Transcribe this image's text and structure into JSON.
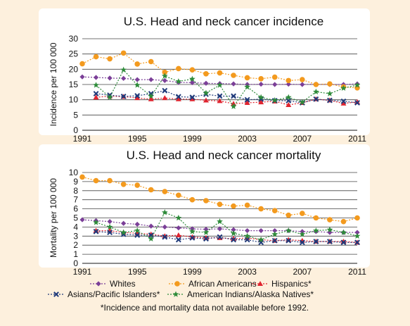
{
  "chart_data": [
    {
      "type": "line",
      "title": "U.S. Head and neck cancer incidence",
      "xlabel": "",
      "ylabel": "Incidence per 100 000",
      "ylim": [
        0,
        30
      ],
      "yticks": [
        0,
        5,
        10,
        15,
        20,
        25,
        30
      ],
      "xlim": [
        1991,
        2011
      ],
      "xticks": [
        "1991",
        "1995",
        "1999",
        "2003",
        "2007",
        "2011"
      ],
      "grid": "horizontal",
      "series": [
        {
          "name": "Whites",
          "color": "#7b3f98",
          "marker": "diamond",
          "x": [
            1991,
            1992,
            1993,
            1994,
            1995,
            1996,
            1997,
            1998,
            1999,
            2000,
            2001,
            2002,
            2003,
            2004,
            2005,
            2006,
            2007,
            2008,
            2009,
            2010,
            2011
          ],
          "y": [
            17.5,
            17.3,
            17.1,
            17.0,
            16.6,
            16.6,
            16.3,
            15.7,
            15.6,
            15.4,
            15.3,
            15.2,
            15.0,
            15.1,
            15.0,
            15.1,
            15.0,
            15.1,
            15.0,
            15.0,
            15.2
          ]
        },
        {
          "name": "African Americans",
          "color": "#f39a1e",
          "marker": "circle",
          "x": [
            1991,
            1992,
            1993,
            1994,
            1995,
            1996,
            1997,
            1998,
            1999,
            2000,
            2001,
            2002,
            2003,
            2004,
            2005,
            2006,
            2007,
            2008,
            2009,
            2010,
            2011
          ],
          "y": [
            21.8,
            24.1,
            23.4,
            25.3,
            21.7,
            22.5,
            19.0,
            20.2,
            19.8,
            18.5,
            18.8,
            18.0,
            17.2,
            16.9,
            17.4,
            16.3,
            16.6,
            15.0,
            15.2,
            14.2,
            13.9
          ]
        },
        {
          "name": "Hispanics*",
          "color": "#e0242f",
          "marker": "triangle",
          "x": [
            1992,
            1993,
            1994,
            1995,
            1996,
            1997,
            1998,
            1999,
            2000,
            2001,
            2002,
            2003,
            2004,
            2005,
            2006,
            2007,
            2008,
            2009,
            2010,
            2011
          ],
          "y": [
            10.8,
            11.2,
            11.0,
            10.6,
            10.2,
            10.6,
            10.2,
            10.2,
            9.8,
            9.6,
            8.7,
            9.0,
            9.2,
            9.5,
            8.3,
            9.0,
            10.2,
            9.8,
            8.8,
            9.3
          ]
        },
        {
          "name": "Asians/Pacific Islanders*",
          "color": "#1f3a7a",
          "marker": "x",
          "x": [
            1992,
            1993,
            1994,
            1995,
            1996,
            1997,
            1998,
            1999,
            2000,
            2001,
            2002,
            2003,
            2004,
            2005,
            2006,
            2007,
            2008,
            2009,
            2010,
            2011
          ],
          "y": [
            12.0,
            11.5,
            11.1,
            11.3,
            12.0,
            13.0,
            11.0,
            10.8,
            11.8,
            11.2,
            11.2,
            10.0,
            10.2,
            9.7,
            9.7,
            9.0,
            10.2,
            9.8,
            9.5,
            9.0
          ]
        },
        {
          "name": "American Indians/Alaska Natives*",
          "color": "#2e8b3a",
          "marker": "star",
          "x": [
            1992,
            1993,
            1994,
            1995,
            1996,
            1997,
            1998,
            1999,
            2000,
            2001,
            2002,
            2003,
            2004,
            2005,
            2006,
            2007,
            2008,
            2009,
            2010,
            2011
          ],
          "y": [
            14.8,
            10.8,
            19.8,
            14.8,
            11.2,
            17.8,
            16.0,
            16.8,
            12.2,
            14.8,
            7.8,
            14.2,
            10.8,
            9.8,
            10.8,
            9.2,
            12.6,
            12.0,
            13.8,
            14.8
          ]
        }
      ]
    },
    {
      "type": "line",
      "title": "U.S. Head and neck cancer mortality",
      "xlabel": "",
      "ylabel": "Mortality per 100 000",
      "ylim": [
        0,
        10
      ],
      "yticks": [
        0,
        1,
        2,
        3,
        4,
        5,
        6,
        7,
        8,
        9,
        10
      ],
      "xlim": [
        1991,
        2011
      ],
      "xticks": [
        "1991",
        "1995",
        "1999",
        "2003",
        "2007",
        "2011"
      ],
      "grid": "horizontal",
      "series": [
        {
          "name": "Whites",
          "color": "#7b3f98",
          "marker": "diamond",
          "x": [
            1991,
            1992,
            1993,
            1994,
            1995,
            1996,
            1997,
            1998,
            1999,
            2000,
            2001,
            2002,
            2003,
            2004,
            2005,
            2006,
            2007,
            2008,
            2009,
            2010,
            2011
          ],
          "y": [
            4.8,
            4.7,
            4.6,
            4.4,
            4.3,
            4.1,
            4.0,
            3.9,
            3.8,
            3.75,
            3.8,
            3.7,
            3.6,
            3.6,
            3.6,
            3.6,
            3.5,
            3.5,
            3.4,
            3.4,
            3.4
          ]
        },
        {
          "name": "African Americans",
          "color": "#f39a1e",
          "marker": "circle",
          "x": [
            1991,
            1992,
            1993,
            1994,
            1995,
            1996,
            1997,
            1998,
            1999,
            2000,
            2001,
            2002,
            2003,
            2004,
            2005,
            2006,
            2007,
            2008,
            2009,
            2010,
            2011
          ],
          "y": [
            9.5,
            9.1,
            9.1,
            8.7,
            8.6,
            8.1,
            7.9,
            7.5,
            7.0,
            6.9,
            6.5,
            6.3,
            6.4,
            6.0,
            5.8,
            5.3,
            5.5,
            5.0,
            4.8,
            4.6,
            5.0
          ]
        },
        {
          "name": "Hispanics*",
          "color": "#e0242f",
          "marker": "triangle",
          "x": [
            1992,
            1993,
            1994,
            1995,
            1996,
            1997,
            1998,
            1999,
            2000,
            2001,
            2002,
            2003,
            2004,
            2005,
            2006,
            2007,
            2008,
            2009,
            2010,
            2011
          ],
          "y": [
            3.6,
            3.6,
            3.4,
            3.3,
            3.2,
            3.0,
            3.1,
            2.9,
            2.8,
            2.8,
            2.7,
            2.8,
            2.6,
            2.5,
            2.6,
            2.5,
            2.4,
            2.4,
            2.4,
            2.3
          ]
        },
        {
          "name": "Asians/Pacific Islanders*",
          "color": "#1f3a7a",
          "marker": "x",
          "x": [
            1992,
            1993,
            1994,
            1995,
            1996,
            1997,
            1998,
            1999,
            2000,
            2001,
            2002,
            2003,
            2004,
            2005,
            2006,
            2007,
            2008,
            2009,
            2010,
            2011
          ],
          "y": [
            3.5,
            3.4,
            3.2,
            3.1,
            3.1,
            2.9,
            2.6,
            2.8,
            2.7,
            2.9,
            2.6,
            2.6,
            2.3,
            2.5,
            2.5,
            2.3,
            2.4,
            2.4,
            2.3,
            2.3
          ]
        },
        {
          "name": "American Indians/Alaska Natives*",
          "color": "#2e8b3a",
          "marker": "star",
          "x": [
            1992,
            1993,
            1994,
            1995,
            1996,
            1997,
            1998,
            1999,
            2000,
            2001,
            2002,
            2003,
            2004,
            2005,
            2006,
            2007,
            2008,
            2009,
            2010,
            2011
          ],
          "y": [
            4.5,
            4.0,
            3.4,
            3.6,
            2.7,
            5.6,
            5.0,
            3.5,
            3.4,
            4.6,
            3.3,
            3.0,
            2.6,
            3.2,
            3.6,
            3.2,
            3.6,
            3.7,
            3.4,
            3.0
          ]
        }
      ]
    }
  ],
  "legend": [
    {
      "name": "Whites",
      "color": "#7b3f98",
      "marker": "diamond"
    },
    {
      "name": "African Americans",
      "color": "#f39a1e",
      "marker": "circle"
    },
    {
      "name": "Hispanics*",
      "color": "#e0242f",
      "marker": "triangle"
    },
    {
      "name": "Asians/Pacific Islanders*",
      "color": "#1f3a7a",
      "marker": "x"
    },
    {
      "name": "American Indians/Alaska Natives*",
      "color": "#2e8b3a",
      "marker": "star"
    }
  ],
  "footnote": "*Incidence and mortality data not available before 1992."
}
